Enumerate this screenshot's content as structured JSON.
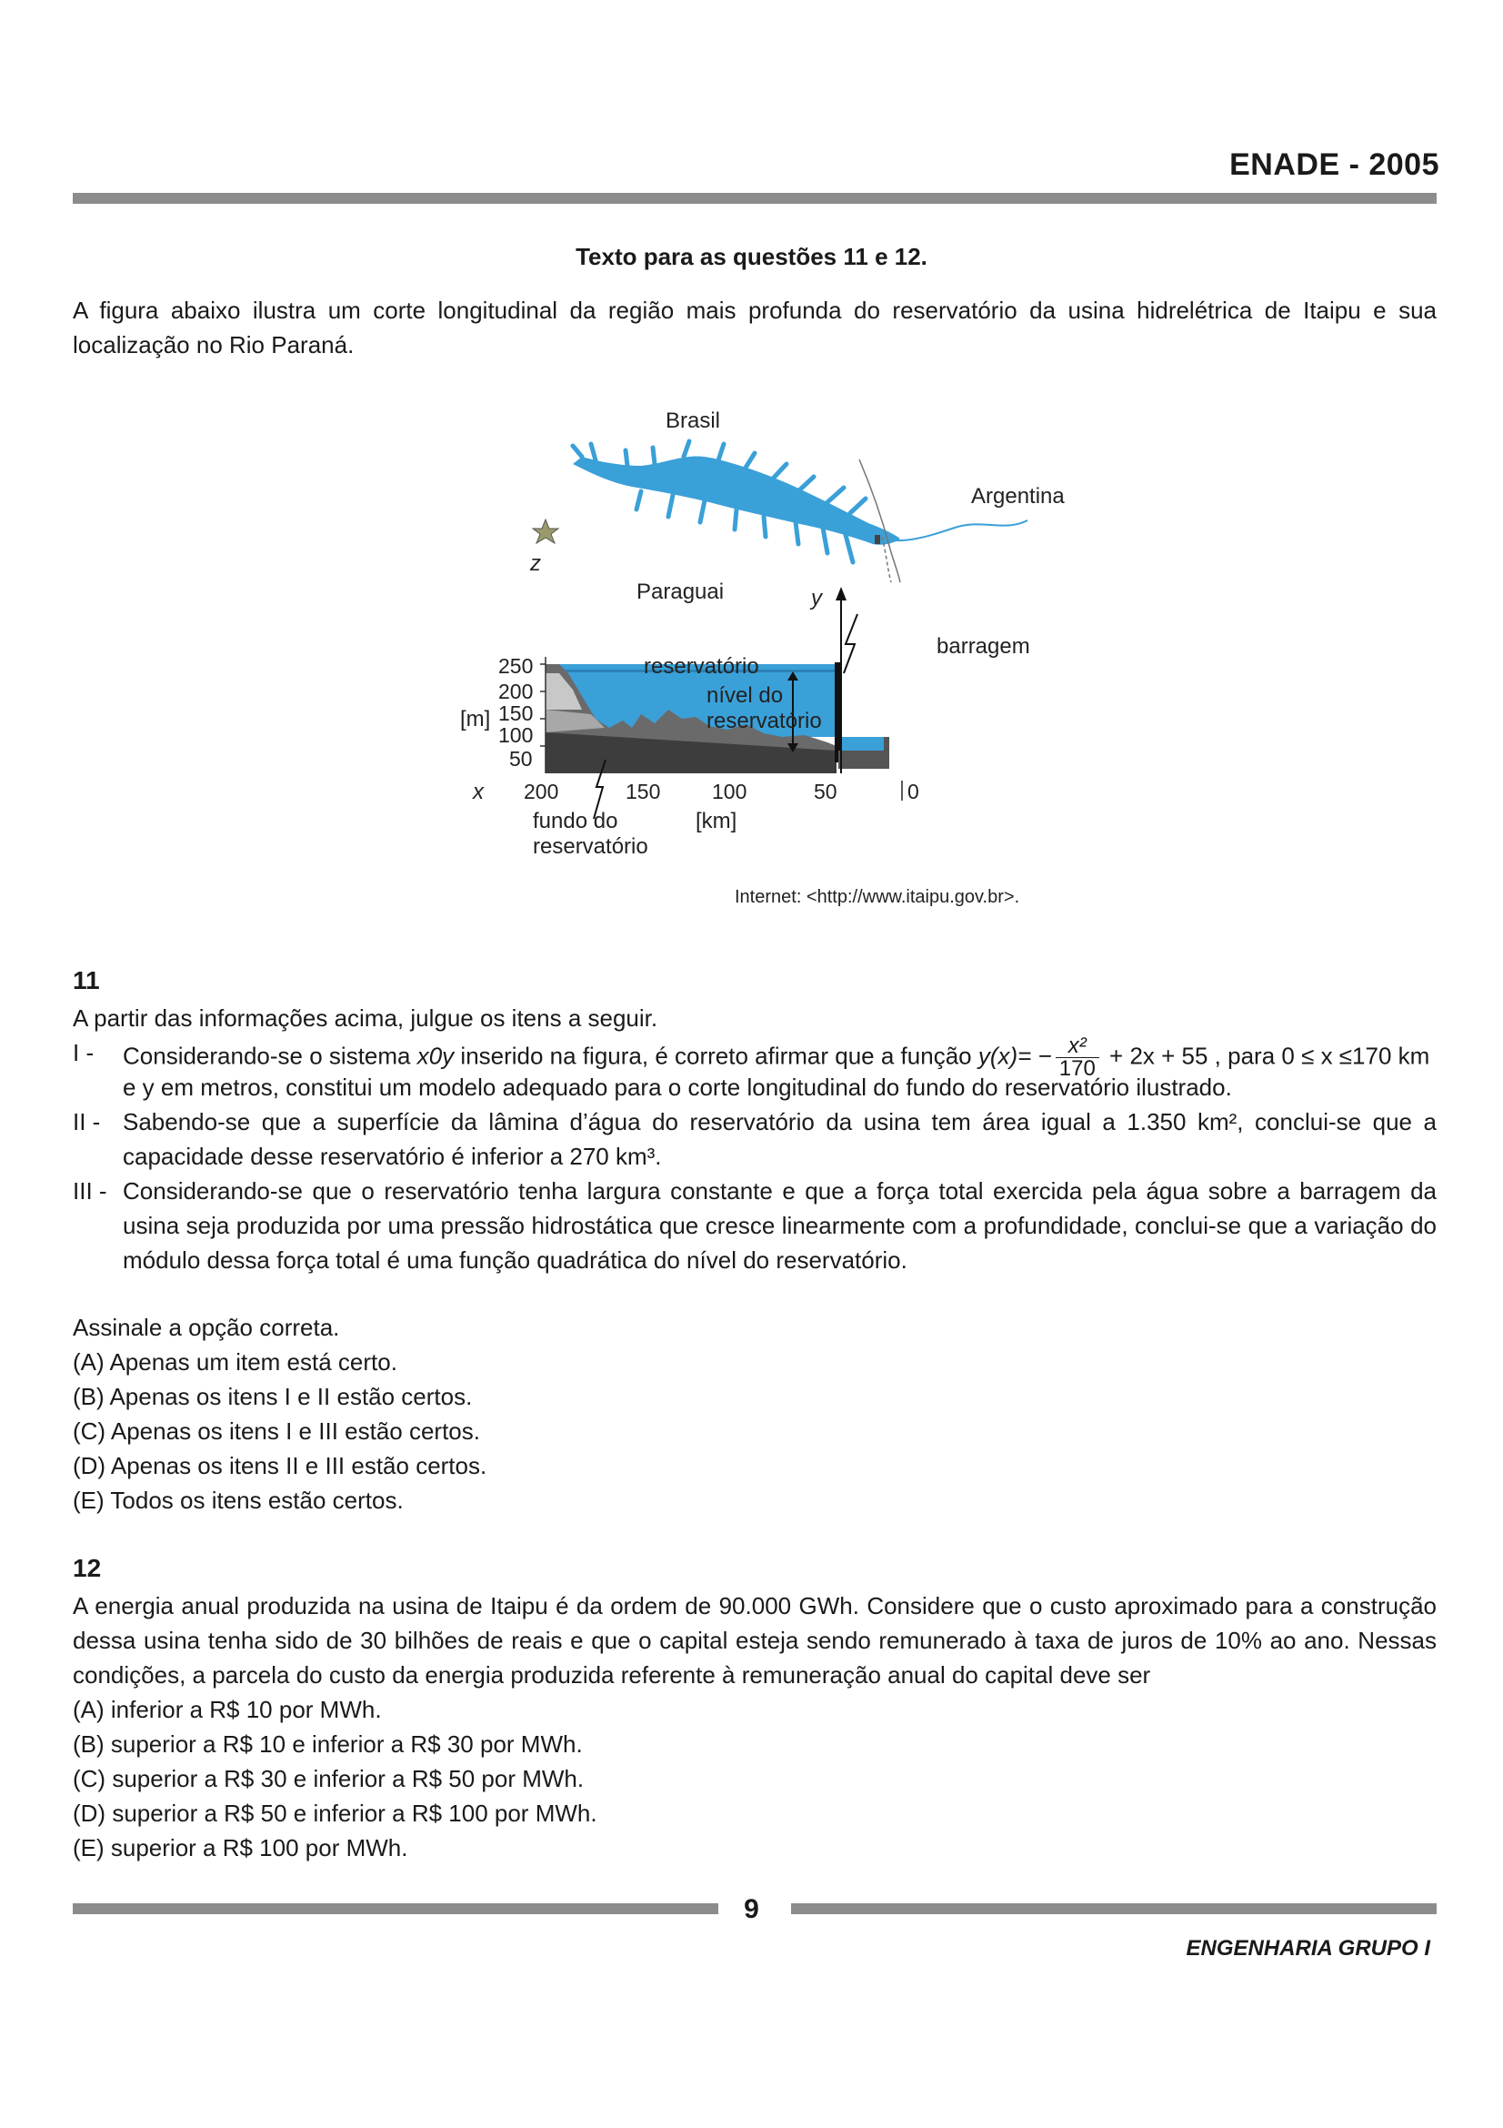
{
  "header": {
    "title": "ENADE - 2005"
  },
  "section_title": "Texto para as questões 11 e 12.",
  "intro": "A figura abaixo ilustra um corte longitudinal da região mais profunda do reservatório da usina hidrelétrica de Itaipu e sua localização no Rio Paraná.",
  "figure": {
    "labels": {
      "brasil": "Brasil",
      "argentina": "Argentina",
      "paraguai": "Paraguai",
      "z": "z",
      "y": "y",
      "x": "x",
      "barragem": "barragem",
      "reservatorio": "reservatório",
      "nivel_line1": "nível do",
      "nivel_line2": "reservatório",
      "fundo_line1": "fundo do",
      "fundo_line2": "reservatório",
      "m_unit": "[m]",
      "km_unit": "[km]"
    },
    "y_ticks": [
      "250",
      "200",
      "150",
      "100",
      "50"
    ],
    "x_ticks": [
      "200",
      "150",
      "100",
      "50",
      "0"
    ],
    "source": "Internet: <http://www.itaipu.gov.br>.",
    "colors": {
      "water": "#3aa0d8",
      "ground_dark": "#4d4d4d",
      "ground_light": "#bfbfbf"
    }
  },
  "q11": {
    "number": "11",
    "prompt": "A partir das informações acima, julgue os itens a seguir.",
    "item1": {
      "roman": "I -",
      "pre": "Considerando-se o sistema ",
      "sys": "x0y",
      "mid": " inserido na figura, é correto afirmar que a função ",
      "fn": "y(x)= −",
      "frac_num": "x²",
      "frac_den": "170",
      "post": " + 2x + 55 , para 0 ≤ x ≤170 km",
      "cont": "e y em metros, constitui um modelo adequado para o corte longitudinal do fundo do reservatório ilustrado."
    },
    "item2": {
      "roman": "II -",
      "text": "Sabendo-se que a superfície da lâmina d’água do reservatório da usina tem área igual a 1.350 km², conclui-se que a capacidade desse reservatório é inferior a 270 km³."
    },
    "item3": {
      "roman": "III -",
      "text": "Considerando-se que o reservatório tenha largura constante e que a força total exercida pela água sobre a barragem da usina seja produzida por uma pressão hidrostática que cresce linearmente com a profundidade, conclui-se que a variação do módulo dessa força total é uma função quadrática do nível do reservatório."
    },
    "instruction": "Assinale a opção correta.",
    "options": [
      "(A) Apenas um item está certo.",
      "(B) Apenas os itens I e II estão certos.",
      "(C) Apenas os itens I e III estão certos.",
      "(D) Apenas os itens II e III estão certos.",
      "(E) Todos os itens estão certos."
    ]
  },
  "q12": {
    "number": "12",
    "text": "A energia anual produzida na usina de Itaipu é da ordem de 90.000 GWh. Considere que o custo aproximado para a construção dessa usina tenha sido de 30 bilhões de reais e que o capital esteja sendo remunerado à taxa de juros de 10% ao ano. Nessas condições, a parcela do custo da energia produzida referente à remuneração anual do capital deve ser",
    "options": [
      "(A) inferior a R$ 10 por MWh.",
      "(B) superior a R$ 10 e inferior a R$ 30 por MWh.",
      "(C) superior a R$ 30 e inferior a R$ 50 por MWh.",
      "(D) superior a R$ 50 e inferior a R$ 100 por MWh.",
      "(E) superior a R$ 100 por MWh."
    ]
  },
  "footer": {
    "page_number": "9",
    "text": "ENGENHARIA GRUPO I"
  }
}
